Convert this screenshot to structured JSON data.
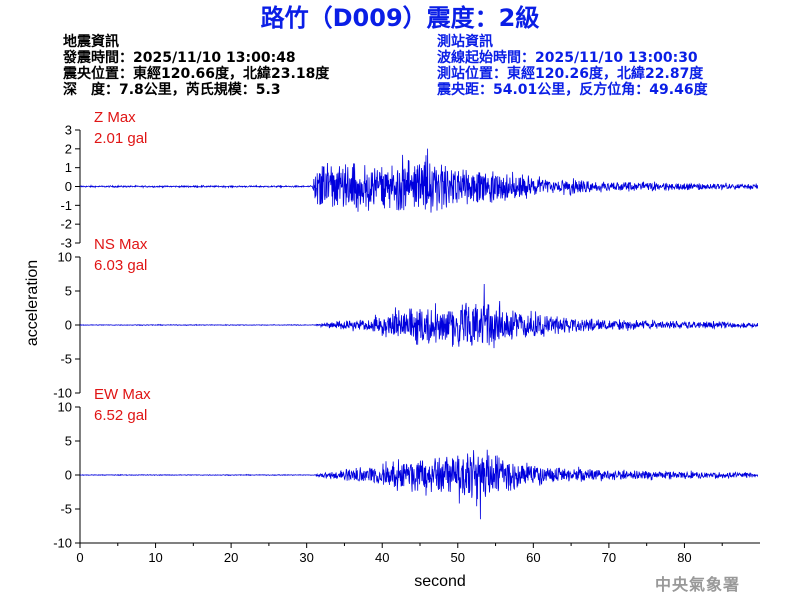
{
  "title": "路竹（D009）震度：2級",
  "event_info": {
    "heading": "地震資訊",
    "origin_time": "發震時間：2025/11/10 13:00:48",
    "epicenter": "震央位置：東經120.66度，北緯23.18度",
    "depth_magnitude": "深　度：7.8公里，芮氏規模：5.3"
  },
  "station_info": {
    "heading": "測站資訊",
    "wave_start": "波線起始時間：2025/11/10 13:00:30",
    "location": "測站位置：東經120.26度，北緯22.87度",
    "distance_azimuth": "震央距：54.01公里，反方位角：49.46度"
  },
  "credit": "中央氣象署",
  "colors": {
    "title": "#0a1ee6",
    "trace": "#0000dd",
    "max_label": "#e01515",
    "axis": "#000000"
  },
  "chart_data": {
    "type": "line",
    "x_axis": {
      "label": "second",
      "range": [
        0,
        90
      ],
      "ticks": [
        0,
        10,
        20,
        30,
        40,
        50,
        60,
        70,
        80
      ],
      "tick_labels": [
        "0",
        "10",
        "20",
        "30",
        "40",
        "50",
        "60",
        "70",
        "80"
      ]
    },
    "y_axis_label": "acceleration",
    "panels": [
      {
        "component": "Z",
        "max_label": "Z Max",
        "max_value_label": "2.01 gal",
        "max_gal": 2.01,
        "ylim": [
          -3,
          3
        ],
        "yticks": [
          -3,
          -2,
          -1,
          0,
          1,
          2,
          3
        ],
        "ytick_labels": [
          "-3",
          "-2",
          "-1",
          "0",
          "1",
          "2",
          "3"
        ],
        "p_arrival_s": 30.8,
        "peak_time_s": 46,
        "peak_value": 2.01,
        "noise_level": 0.04,
        "envelope": [
          [
            30.8,
            0.2
          ],
          [
            31.2,
            1.6
          ],
          [
            34,
            1.7
          ],
          [
            40,
            1.6
          ],
          [
            46,
            2.0
          ],
          [
            50,
            1.3
          ],
          [
            55,
            1.1
          ],
          [
            62,
            0.6
          ],
          [
            70,
            0.35
          ],
          [
            80,
            0.25
          ],
          [
            89,
            0.18
          ]
        ]
      },
      {
        "component": "NS",
        "max_label": "NS Max",
        "max_value_label": "6.03 gal",
        "max_gal": 6.03,
        "ylim": [
          -10,
          10
        ],
        "yticks": [
          -10,
          -5,
          0,
          5,
          10
        ],
        "ytick_labels": [
          "-10",
          "-5",
          "0",
          "5",
          "10"
        ],
        "p_arrival_s": 31.0,
        "peak_time_s": 53.5,
        "peak_value": 6.03,
        "noise_level": 0.05,
        "envelope": [
          [
            31,
            0.1
          ],
          [
            33,
            0.6
          ],
          [
            38,
            1.2
          ],
          [
            42,
            3.5
          ],
          [
            46,
            3.8
          ],
          [
            50,
            4.0
          ],
          [
            52,
            5.6
          ],
          [
            54,
            5.0
          ],
          [
            57,
            3.0
          ],
          [
            62,
            1.8
          ],
          [
            70,
            1.1
          ],
          [
            80,
            0.8
          ],
          [
            89,
            0.5
          ]
        ]
      },
      {
        "component": "EW",
        "max_label": "EW Max",
        "max_value_label": "6.52 gal",
        "max_gal": 6.52,
        "ylim": [
          -10,
          10
        ],
        "yticks": [
          -10,
          -5,
          0,
          5,
          10
        ],
        "ytick_labels": [
          "-10",
          "-5",
          "0",
          "5",
          "10"
        ],
        "p_arrival_s": 31.0,
        "peak_time_s": 53.0,
        "peak_value": -6.52,
        "noise_level": 0.05,
        "envelope": [
          [
            31,
            0.2
          ],
          [
            33,
            0.8
          ],
          [
            38,
            1.5
          ],
          [
            42,
            2.8
          ],
          [
            47,
            3.5
          ],
          [
            50,
            4.5
          ],
          [
            52,
            5.8
          ],
          [
            54,
            4.5
          ],
          [
            57,
            3.0
          ],
          [
            62,
            1.6
          ],
          [
            70,
            1.0
          ],
          [
            80,
            0.7
          ],
          [
            89,
            0.5
          ]
        ]
      }
    ]
  }
}
